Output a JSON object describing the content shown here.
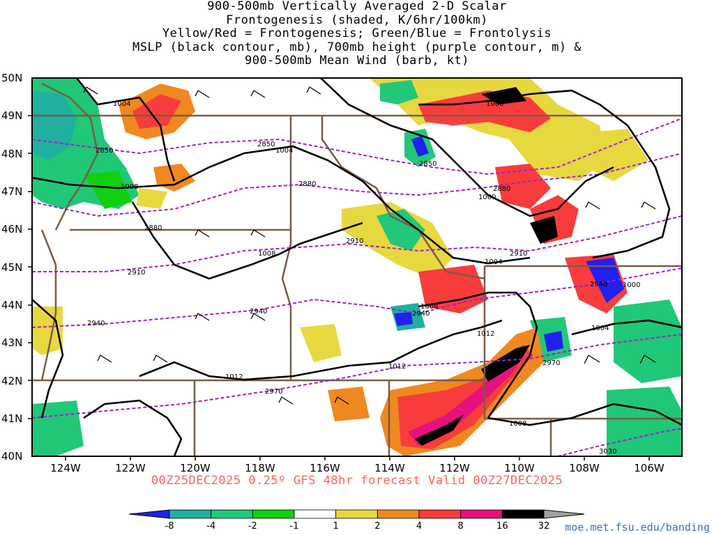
{
  "title": {
    "line1": "900-500mb Vertically Averaged 2-D Scalar",
    "line2": "Frontogenesis (shaded, K/6hr/100km)",
    "line3": "Yellow/Red = Frontogenesis;  Green/Blue = Frontolysis",
    "line4": "MSLP (black contour, mb), 700mb height (purple contour, m) &",
    "line5": "900-500mb Mean Wind (barb, kt)"
  },
  "footer": {
    "run": "00Z25DEC2025 0.25º GFS 48hr forecast Valid 00Z27DEC2025",
    "credit": "moe.met.fsu.edu/banding"
  },
  "map": {
    "lat_labels": [
      "50N",
      "49N",
      "48N",
      "47N",
      "46N",
      "45N",
      "44N",
      "43N",
      "42N",
      "41N",
      "40N"
    ],
    "lon_labels": [
      "124W",
      "122W",
      "120W",
      "118W",
      "116W",
      "114W",
      "112W",
      "110W",
      "108W",
      "106W"
    ],
    "mslp_labels": [
      "1004",
      "1004",
      "1000",
      "1008",
      "1000",
      "1008",
      "1004",
      "1000",
      "1008",
      "1004",
      "1012",
      "1012",
      "1012",
      "1008"
    ],
    "height_labels": [
      "2850",
      "2850",
      "2880",
      "2850",
      "2880",
      "2880",
      "2910",
      "2910",
      "2910",
      "2940",
      "2940",
      "2940",
      "2940",
      "2970",
      "2970",
      "3030"
    ],
    "colors": {
      "border": "#7b5a44",
      "mslp": "#000000",
      "height": "#a020d0",
      "frame": "#000000"
    }
  },
  "colorbar": {
    "ticks": [
      "-8",
      "-4",
      "-2",
      "-1",
      "1",
      "2",
      "4",
      "8",
      "16",
      "32"
    ],
    "colors": [
      "#2020f0",
      "#20b0a0",
      "#20c878",
      "#10d010",
      "#ffffff",
      "#e8d840",
      "#f08820",
      "#f83c3c",
      "#e8107c",
      "#000000",
      "#a0a0a0"
    ]
  }
}
